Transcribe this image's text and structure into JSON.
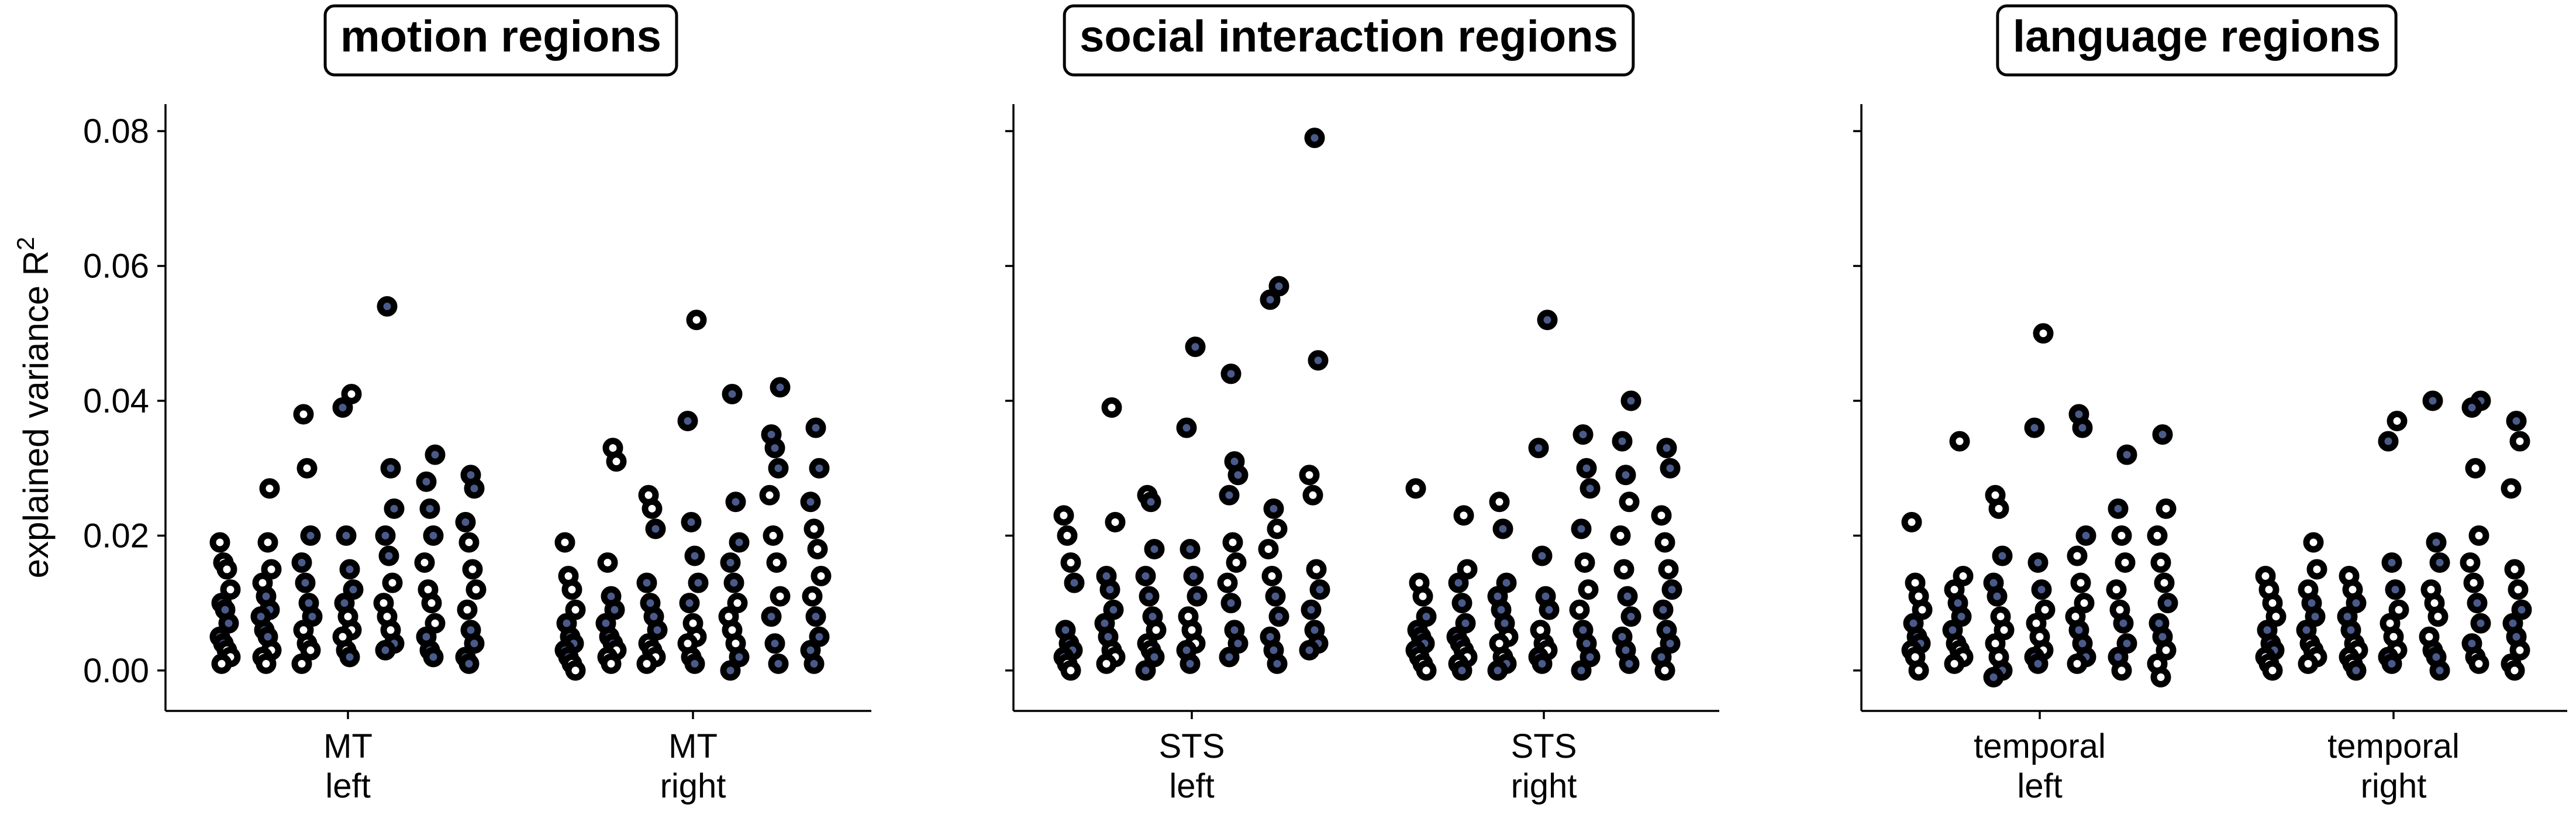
{
  "chart_data": [
    {
      "type": "scatter",
      "title": "motion regions",
      "ylabel": "explained variance R",
      "ylabel_sup": "2",
      "ylim": [
        -0.006,
        0.084
      ],
      "yticks": [
        "0.00",
        "0.02",
        "0.04",
        "0.06",
        "0.08"
      ],
      "ytick_values": [
        0.0,
        0.02,
        0.04,
        0.06,
        0.08
      ],
      "categories": [
        {
          "line1": "MT",
          "line2": "left"
        },
        {
          "line1": "MT",
          "line2": "right"
        }
      ],
      "point_colors": [
        "#ffffff",
        "#ffffff",
        "#ffffff",
        "#ffffff",
        "#4a5a8a",
        "#4a5a8a",
        "#4a5a8a",
        "#4a5a8a",
        "#4a5a8a"
      ],
      "groups": [
        {
          "category": 0,
          "columns": [
            [
              0.019,
              0.016,
              0.015,
              0.012,
              0.01,
              0.009,
              0.007,
              0.005,
              0.004,
              0.003,
              0.002,
              0.001
            ],
            [
              0.019,
              0.015,
              0.013,
              0.011,
              0.009,
              0.008,
              0.006,
              0.005,
              0.003,
              0.002,
              0.001,
              0.027
            ],
            [
              0.038,
              0.03,
              0.02,
              0.016,
              0.013,
              0.01,
              0.008,
              0.006,
              0.004,
              0.003,
              0.001
            ],
            [
              0.041,
              0.039,
              0.02,
              0.015,
              0.012,
              0.01,
              0.008,
              0.006,
              0.005,
              0.003,
              0.002
            ],
            [
              0.054,
              0.03,
              0.024,
              0.02,
              0.017,
              0.013,
              0.01,
              0.008,
              0.006,
              0.004,
              0.003
            ],
            [
              0.032,
              0.028,
              0.024,
              0.02,
              0.016,
              0.012,
              0.01,
              0.007,
              0.005,
              0.003,
              0.002
            ],
            [
              0.029,
              0.027,
              0.022,
              0.019,
              0.015,
              0.012,
              0.009,
              0.006,
              0.004,
              0.002,
              0.001
            ]
          ]
        },
        {
          "category": 1,
          "columns": [
            [
              0.019,
              0.014,
              0.012,
              0.009,
              0.007,
              0.005,
              0.004,
              0.003,
              0.002,
              0.001,
              0.0
            ],
            [
              0.033,
              0.031,
              0.016,
              0.011,
              0.009,
              0.007,
              0.005,
              0.004,
              0.003,
              0.002,
              0.001
            ],
            [
              0.026,
              0.024,
              0.021,
              0.013,
              0.01,
              0.008,
              0.006,
              0.004,
              0.003,
              0.002,
              0.001
            ],
            [
              0.052,
              0.037,
              0.022,
              0.017,
              0.013,
              0.01,
              0.007,
              0.005,
              0.004,
              0.002,
              0.001
            ],
            [
              0.041,
              0.025,
              0.019,
              0.016,
              0.013,
              0.01,
              0.008,
              0.006,
              0.004,
              0.002,
              0.0
            ],
            [
              0.042,
              0.035,
              0.033,
              0.03,
              0.026,
              0.02,
              0.016,
              0.011,
              0.008,
              0.004,
              0.001
            ],
            [
              0.036,
              0.03,
              0.025,
              0.021,
              0.018,
              0.014,
              0.011,
              0.008,
              0.005,
              0.003,
              0.001
            ]
          ]
        }
      ]
    },
    {
      "type": "scatter",
      "title": "social interaction regions",
      "ylim": [
        -0.006,
        0.084
      ],
      "ytick_values": [
        0.0,
        0.02,
        0.04,
        0.06,
        0.08
      ],
      "categories": [
        {
          "line1": "STS",
          "line2": "left"
        },
        {
          "line1": "STS",
          "line2": "right"
        }
      ],
      "point_colors": [
        "#ffffff",
        "#ffffff",
        "#ffffff",
        "#4a5a8a",
        "#4a5a8a",
        "#4a5a8a",
        "#4a5a8a",
        "#4a5a8a"
      ],
      "groups": [
        {
          "category": 0,
          "columns": [
            [
              0.023,
              0.02,
              0.016,
              0.013,
              0.006,
              0.004,
              0.003,
              0.002,
              0.001,
              0.0
            ],
            [
              0.039,
              0.022,
              0.014,
              0.012,
              0.009,
              0.007,
              0.005,
              0.003,
              0.002,
              0.001
            ],
            [
              0.026,
              0.025,
              0.018,
              0.014,
              0.011,
              0.008,
              0.006,
              0.004,
              0.003,
              0.002,
              0.0
            ],
            [
              0.048,
              0.036,
              0.018,
              0.014,
              0.011,
              0.008,
              0.006,
              0.004,
              0.003,
              0.001
            ],
            [
              0.044,
              0.031,
              0.029,
              0.026,
              0.019,
              0.016,
              0.013,
              0.01,
              0.006,
              0.004,
              0.002
            ],
            [
              0.057,
              0.055,
              0.024,
              0.021,
              0.018,
              0.014,
              0.011,
              0.008,
              0.005,
              0.003,
              0.001
            ],
            [
              0.079,
              0.046,
              0.029,
              0.026,
              0.015,
              0.012,
              0.009,
              0.006,
              0.004,
              0.003
            ]
          ]
        },
        {
          "category": 1,
          "columns": [
            [
              0.027,
              0.013,
              0.011,
              0.008,
              0.006,
              0.005,
              0.004,
              0.003,
              0.002,
              0.001,
              0.0
            ],
            [
              0.023,
              0.015,
              0.013,
              0.01,
              0.007,
              0.005,
              0.004,
              0.003,
              0.002,
              0.001,
              0.0
            ],
            [
              0.025,
              0.021,
              0.013,
              0.011,
              0.009,
              0.007,
              0.005,
              0.004,
              0.002,
              0.001,
              0.0
            ],
            [
              0.052,
              0.033,
              0.017,
              0.011,
              0.009,
              0.006,
              0.004,
              0.003,
              0.002,
              0.001
            ],
            [
              0.035,
              0.03,
              0.027,
              0.021,
              0.016,
              0.012,
              0.009,
              0.006,
              0.004,
              0.002,
              0.0
            ],
            [
              0.04,
              0.034,
              0.029,
              0.025,
              0.02,
              0.015,
              0.011,
              0.008,
              0.005,
              0.003,
              0.001
            ],
            [
              0.033,
              0.03,
              0.023,
              0.019,
              0.015,
              0.012,
              0.009,
              0.006,
              0.004,
              0.002,
              0.0
            ]
          ]
        }
      ]
    },
    {
      "type": "scatter",
      "title": "language regions",
      "ylim": [
        -0.006,
        0.084
      ],
      "ytick_values": [
        0.0,
        0.02,
        0.04,
        0.06,
        0.08
      ],
      "categories": [
        {
          "line1": "temporal",
          "line2": "left"
        },
        {
          "line1": "temporal",
          "line2": "right"
        }
      ],
      "point_colors": [
        "#ffffff",
        "#ffffff",
        "#ffffff",
        "#ffffff",
        "#4a5a8a",
        "#4a5a8a",
        "#4a5a8a"
      ],
      "groups": [
        {
          "category": 0,
          "columns": [
            [
              0.022,
              0.013,
              0.011,
              0.009,
              0.007,
              0.005,
              0.004,
              0.003,
              0.002,
              0.0
            ],
            [
              0.034,
              0.014,
              0.012,
              0.01,
              0.008,
              0.006,
              0.004,
              0.003,
              0.002,
              0.001
            ],
            [
              0.026,
              0.024,
              0.017,
              0.013,
              0.011,
              0.008,
              0.006,
              0.004,
              0.002,
              0.0,
              -0.001
            ],
            [
              0.05,
              0.036,
              0.016,
              0.012,
              0.009,
              0.007,
              0.005,
              0.003,
              0.002,
              0.001
            ],
            [
              0.038,
              0.036,
              0.02,
              0.017,
              0.013,
              0.01,
              0.008,
              0.006,
              0.004,
              0.002,
              0.001
            ],
            [
              0.032,
              0.024,
              0.02,
              0.016,
              0.012,
              0.009,
              0.007,
              0.004,
              0.002,
              0.0
            ],
            [
              0.035,
              0.024,
              0.02,
              0.016,
              0.013,
              0.01,
              0.007,
              0.005,
              0.003,
              0.001,
              -0.001
            ]
          ]
        },
        {
          "category": 1,
          "columns": [
            [
              0.014,
              0.012,
              0.01,
              0.008,
              0.006,
              0.004,
              0.003,
              0.002,
              0.001,
              0.0
            ],
            [
              0.019,
              0.015,
              0.012,
              0.01,
              0.008,
              0.006,
              0.004,
              0.003,
              0.002,
              0.001
            ],
            [
              0.014,
              0.012,
              0.01,
              0.008,
              0.006,
              0.004,
              0.003,
              0.002,
              0.001,
              0.0
            ],
            [
              0.037,
              0.034,
              0.016,
              0.012,
              0.009,
              0.007,
              0.005,
              0.003,
              0.002,
              0.001
            ],
            [
              0.04,
              0.019,
              0.016,
              0.012,
              0.01,
              0.008,
              0.005,
              0.003,
              0.002,
              0.0
            ],
            [
              0.04,
              0.039,
              0.03,
              0.02,
              0.016,
              0.013,
              0.01,
              0.007,
              0.004,
              0.002,
              0.001
            ],
            [
              0.037,
              0.034,
              0.027,
              0.015,
              0.012,
              0.009,
              0.007,
              0.005,
              0.003,
              0.001,
              0.0
            ]
          ]
        }
      ]
    }
  ]
}
